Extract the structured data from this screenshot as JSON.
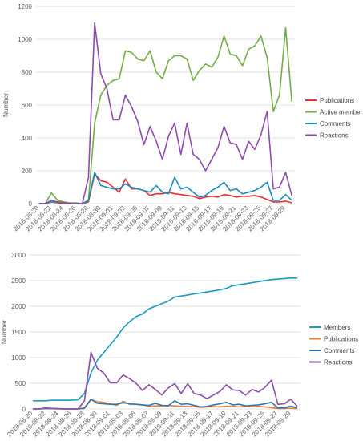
{
  "chart_data": [
    {
      "type": "line",
      "ylabel": "Number",
      "ylim": [
        0,
        1200
      ],
      "yticks": [
        0,
        200,
        400,
        600,
        800,
        1000,
        1200
      ],
      "grid": true,
      "legend_position": "right",
      "x": [
        "2018-08-20",
        "2018-08-21",
        "2018-08-22",
        "2018-08-23",
        "2018-08-24",
        "2018-08-25",
        "2018-08-26",
        "2018-08-27",
        "2018-08-28",
        "2018-08-29",
        "2018-08-30",
        "2018-08-31",
        "2018-09-01",
        "2018-09-02",
        "2018-09-03",
        "2018-09-04",
        "2018-09-05",
        "2018-09-06",
        "2018-09-07",
        "2018-09-08",
        "2018-09-09",
        "2018-09-10",
        "2018-09-11",
        "2018-09-12",
        "2018-09-13",
        "2018-09-14",
        "2018-09-15",
        "2018-09-16",
        "2018-09-17",
        "2018-09-18",
        "2018-09-19",
        "2018-09-20",
        "2018-09-21",
        "2018-09-22",
        "2018-09-23",
        "2018-09-24",
        "2018-09-25",
        "2018-09-26",
        "2018-09-27",
        "2018-09-28",
        "2018-09-29",
        "2018-09-30"
      ],
      "xticklabels": [
        "2018-08-20",
        "2018-08-22",
        "2018-08-24",
        "2018-08-26",
        "2018-08-28",
        "2018-08-30",
        "2018-09-01",
        "2018-09-03",
        "2018-09-05",
        "2018-09-07",
        "2018-09-09",
        "2018-09-11",
        "2018-09-13",
        "2018-09-15",
        "2018-09-17",
        "2018-09-19",
        "2018-09-21",
        "2018-09-23",
        "2018-09-25",
        "2018-09-27",
        "2018-09-29"
      ],
      "series": [
        {
          "name": "Publications",
          "color": "#e8302e",
          "values": [
            0,
            0,
            10,
            5,
            2,
            0,
            0,
            0,
            10,
            180,
            140,
            130,
            100,
            70,
            150,
            90,
            90,
            80,
            50,
            60,
            60,
            70,
            60,
            55,
            50,
            45,
            30,
            40,
            45,
            40,
            55,
            50,
            40,
            45,
            45,
            50,
            40,
            25,
            10,
            10,
            15,
            5
          ]
        },
        {
          "name": "Active members",
          "color": "#70ad47",
          "values": [
            0,
            0,
            65,
            20,
            10,
            5,
            5,
            0,
            20,
            490,
            660,
            720,
            750,
            760,
            930,
            920,
            880,
            870,
            930,
            800,
            760,
            870,
            900,
            900,
            880,
            750,
            810,
            850,
            830,
            890,
            1020,
            910,
            900,
            840,
            940,
            960,
            1020,
            890,
            560,
            660,
            1070,
            620
          ]
        },
        {
          "name": "Comments",
          "color": "#1a8bbf",
          "values": [
            0,
            0,
            10,
            10,
            5,
            0,
            0,
            0,
            20,
            190,
            110,
            100,
            90,
            90,
            120,
            100,
            90,
            80,
            70,
            110,
            70,
            60,
            160,
            90,
            100,
            70,
            40,
            50,
            80,
            100,
            130,
            80,
            90,
            60,
            70,
            80,
            100,
            130,
            20,
            20,
            55,
            20
          ]
        },
        {
          "name": "Reactions",
          "color": "#8c4cab",
          "values": [
            0,
            0,
            20,
            10,
            5,
            0,
            0,
            0,
            160,
            1100,
            790,
            700,
            510,
            510,
            660,
            590,
            500,
            360,
            470,
            380,
            270,
            410,
            490,
            300,
            490,
            300,
            270,
            200,
            270,
            340,
            470,
            370,
            360,
            270,
            380,
            330,
            420,
            560,
            90,
            100,
            190,
            50
          ]
        }
      ]
    },
    {
      "type": "line",
      "ylabel": "Number",
      "ylim": [
        0,
        3000
      ],
      "yticks": [
        0,
        500,
        1000,
        1500,
        2000,
        2500,
        3000
      ],
      "grid": true,
      "legend_position": "right",
      "x": [
        "2018-08-20",
        "2018-08-21",
        "2018-08-22",
        "2018-08-23",
        "2018-08-24",
        "2018-08-25",
        "2018-08-26",
        "2018-08-27",
        "2018-08-28",
        "2018-08-29",
        "2018-08-30",
        "2018-08-31",
        "2018-09-01",
        "2018-09-02",
        "2018-09-03",
        "2018-09-04",
        "2018-09-05",
        "2018-09-06",
        "2018-09-07",
        "2018-09-08",
        "2018-09-09",
        "2018-09-10",
        "2018-09-11",
        "2018-09-12",
        "2018-09-13",
        "2018-09-14",
        "2018-09-15",
        "2018-09-16",
        "2018-09-17",
        "2018-09-18",
        "2018-09-19",
        "2018-09-20",
        "2018-09-21",
        "2018-09-22",
        "2018-09-23",
        "2018-09-24",
        "2018-09-25",
        "2018-09-26",
        "2018-09-27",
        "2018-09-28",
        "2018-09-29",
        "2018-09-30"
      ],
      "xticklabels": [
        "2018-08-20",
        "2018-08-22",
        "2018-08-24",
        "2018-08-26",
        "2018-08-28",
        "2018-08-30",
        "2018-09-01",
        "2018-09-03",
        "2018-09-05",
        "2018-09-07",
        "2018-09-09",
        "2018-09-11",
        "2018-09-13",
        "2018-09-15",
        "2018-09-17",
        "2018-09-19",
        "2018-09-21",
        "2018-09-23",
        "2018-09-25",
        "2018-09-27",
        "2018-09-29"
      ],
      "series": [
        {
          "name": "Members",
          "color": "#1a9bbf",
          "values": [
            160,
            160,
            160,
            170,
            170,
            170,
            170,
            180,
            300,
            700,
            950,
            1100,
            1250,
            1400,
            1580,
            1700,
            1800,
            1850,
            1950,
            2000,
            2050,
            2100,
            2180,
            2200,
            2220,
            2240,
            2260,
            2280,
            2300,
            2320,
            2350,
            2400,
            2420,
            2440,
            2460,
            2480,
            2500,
            2520,
            2530,
            2540,
            2550,
            2550
          ]
        },
        {
          "name": "Publications",
          "color": "#ed7d31",
          "values": [
            0,
            0,
            10,
            5,
            2,
            0,
            0,
            0,
            10,
            180,
            140,
            130,
            100,
            70,
            150,
            90,
            90,
            80,
            50,
            60,
            60,
            70,
            60,
            55,
            50,
            45,
            30,
            40,
            45,
            40,
            55,
            50,
            40,
            45,
            45,
            50,
            40,
            25,
            10,
            10,
            15,
            5
          ]
        },
        {
          "name": "Comments",
          "color": "#2e75b6",
          "values": [
            0,
            0,
            10,
            10,
            5,
            0,
            0,
            0,
            20,
            190,
            110,
            100,
            90,
            90,
            120,
            100,
            90,
            80,
            70,
            110,
            70,
            60,
            160,
            90,
            100,
            70,
            40,
            50,
            80,
            100,
            130,
            80,
            90,
            60,
            70,
            80,
            100,
            130,
            20,
            20,
            55,
            20
          ]
        },
        {
          "name": "Reactions",
          "color": "#8c4cab",
          "values": [
            0,
            0,
            20,
            10,
            5,
            0,
            0,
            0,
            160,
            1100,
            790,
            700,
            510,
            510,
            660,
            590,
            500,
            360,
            470,
            380,
            270,
            410,
            490,
            300,
            490,
            300,
            270,
            200,
            270,
            340,
            470,
            370,
            360,
            270,
            380,
            330,
            420,
            560,
            90,
            100,
            190,
            50
          ]
        }
      ]
    }
  ]
}
